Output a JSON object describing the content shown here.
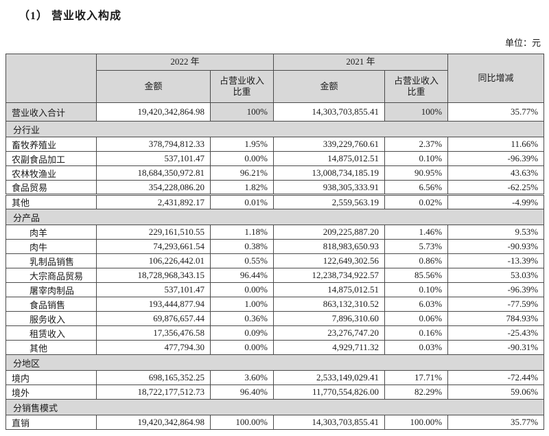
{
  "page": {
    "title": "（1） 营业收入构成",
    "unit_label": "单位：元"
  },
  "table": {
    "header": {
      "year_2022": "2022 年",
      "year_2021": "2021 年",
      "amount_label": "金额",
      "pct_label": "占营业收入\n比重",
      "yoy_label": "同比增减"
    },
    "colors": {
      "header_bg": "#d8d8d8",
      "section_bg": "#d8d8d8",
      "border": "#4a4a4a",
      "text": "#1a1a1a"
    },
    "rows": [
      {
        "type": "total",
        "label": "营业收入合计",
        "a2022": "19,420,342,864.98",
        "p2022": "100%",
        "a2021": "14,303,703,855.41",
        "p2021": "100%",
        "yoy": "35.77%"
      },
      {
        "type": "section",
        "label": "分行业"
      },
      {
        "type": "data",
        "label": "畜牧养殖业",
        "a2022": "378,794,812.33",
        "p2022": "1.95%",
        "a2021": "339,229,760.61",
        "p2021": "2.37%",
        "yoy": "11.66%"
      },
      {
        "type": "data",
        "label": "农副食品加工",
        "a2022": "537,101.47",
        "p2022": "0.00%",
        "a2021": "14,875,012.51",
        "p2021": "0.10%",
        "yoy": "-96.39%"
      },
      {
        "type": "data",
        "label": "农林牧渔业",
        "a2022": "18,684,350,972.81",
        "p2022": "96.21%",
        "a2021": "13,008,734,185.19",
        "p2021": "90.95%",
        "yoy": "43.63%"
      },
      {
        "type": "data",
        "label": "食品贸易",
        "a2022": "354,228,086.20",
        "p2022": "1.82%",
        "a2021": "938,305,333.91",
        "p2021": "6.56%",
        "yoy": "-62.25%"
      },
      {
        "type": "data",
        "label": "其他",
        "a2022": "2,431,892.17",
        "p2022": "0.01%",
        "a2021": "2,559,563.19",
        "p2021": "0.02%",
        "yoy": "-4.99%",
        "double_top": true
      },
      {
        "type": "section",
        "label": "分产品"
      },
      {
        "type": "data",
        "indent": true,
        "label": "肉羊",
        "a2022": "229,161,510.55",
        "p2022": "1.18%",
        "a2021": "209,225,887.20",
        "p2021": "1.46%",
        "yoy": "9.53%"
      },
      {
        "type": "data",
        "indent": true,
        "label": "肉牛",
        "a2022": "74,293,661.54",
        "p2022": "0.38%",
        "a2021": "818,983,650.93",
        "p2021": "5.73%",
        "yoy": "-90.93%"
      },
      {
        "type": "data",
        "indent": true,
        "label": "乳制品销售",
        "a2022": "106,226,442.01",
        "p2022": "0.55%",
        "a2021": "122,649,302.56",
        "p2021": "0.86%",
        "yoy": "-13.39%"
      },
      {
        "type": "data",
        "indent": true,
        "label": "大宗商品贸易",
        "a2022": "18,728,968,343.15",
        "p2022": "96.44%",
        "a2021": "12,238,734,922.57",
        "p2021": "85.56%",
        "yoy": "53.03%"
      },
      {
        "type": "data",
        "indent": true,
        "label": "屠宰肉制品",
        "a2022": "537,101.47",
        "p2022": "0.00%",
        "a2021": "14,875,012.51",
        "p2021": "0.10%",
        "yoy": "-96.39%"
      },
      {
        "type": "data",
        "indent": true,
        "label": "食品销售",
        "a2022": "193,444,877.94",
        "p2022": "1.00%",
        "a2021": "863,132,310.52",
        "p2021": "6.03%",
        "yoy": "-77.59%"
      },
      {
        "type": "data",
        "indent": true,
        "label": "服务收入",
        "a2022": "69,876,657.44",
        "p2022": "0.36%",
        "a2021": "7,896,310.60",
        "p2021": "0.06%",
        "yoy": "784.93%"
      },
      {
        "type": "data",
        "indent": true,
        "label": "租赁收入",
        "a2022": "17,356,476.58",
        "p2022": "0.09%",
        "a2021": "23,276,747.20",
        "p2021": "0.16%",
        "yoy": "-25.43%"
      },
      {
        "type": "data",
        "indent": true,
        "label": "其他",
        "a2022": "477,794.30",
        "p2022": "0.00%",
        "a2021": "4,929,711.32",
        "p2021": "0.03%",
        "yoy": "-90.31%"
      },
      {
        "type": "section",
        "label": "分地区"
      },
      {
        "type": "data",
        "label": "境内",
        "a2022": "698,165,352.25",
        "p2022": "3.60%",
        "a2021": "2,533,149,029.41",
        "p2021": "17.71%",
        "yoy": "-72.44%"
      },
      {
        "type": "data",
        "label": "境外",
        "a2022": "18,722,177,512.73",
        "p2022": "96.40%",
        "a2021": "11,770,554,826.00",
        "p2021": "82.29%",
        "yoy": "59.06%"
      },
      {
        "type": "section",
        "label": "分销售模式"
      },
      {
        "type": "data",
        "label": "直销",
        "a2022": "19,420,342,864.98",
        "p2022": "100.00%",
        "a2021": "14,303,703,855.41",
        "p2021": "100.00%",
        "yoy": "35.77%"
      }
    ]
  }
}
